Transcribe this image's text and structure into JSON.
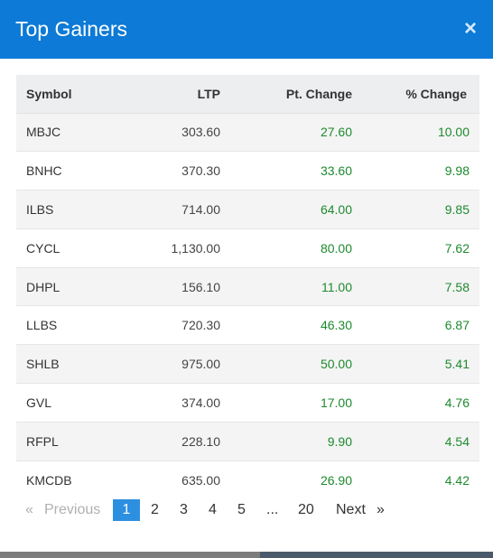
{
  "modal": {
    "title": "Top Gainers",
    "close_label": "×"
  },
  "table": {
    "headers": {
      "symbol": "Symbol",
      "ltp": "LTP",
      "pt_change": "Pt. Change",
      "pct_change": "% Change"
    },
    "rows": [
      {
        "symbol": "MBJC",
        "ltp": "303.60",
        "pt_change": "27.60",
        "pct_change": "10.00"
      },
      {
        "symbol": "BNHC",
        "ltp": "370.30",
        "pt_change": "33.60",
        "pct_change": "9.98"
      },
      {
        "symbol": "ILBS",
        "ltp": "714.00",
        "pt_change": "64.00",
        "pct_change": "9.85"
      },
      {
        "symbol": "CYCL",
        "ltp": "1,130.00",
        "pt_change": "80.00",
        "pct_change": "7.62"
      },
      {
        "symbol": "DHPL",
        "ltp": "156.10",
        "pt_change": "11.00",
        "pct_change": "7.58"
      },
      {
        "symbol": "LLBS",
        "ltp": "720.30",
        "pt_change": "46.30",
        "pct_change": "6.87"
      },
      {
        "symbol": "SHLB",
        "ltp": "975.00",
        "pt_change": "50.00",
        "pct_change": "5.41"
      },
      {
        "symbol": "GVL",
        "ltp": "374.00",
        "pt_change": "17.00",
        "pct_change": "4.76"
      },
      {
        "symbol": "RFPL",
        "ltp": "228.10",
        "pt_change": "9.90",
        "pct_change": "4.54"
      },
      {
        "symbol": "KMCDB",
        "ltp": "635.00",
        "pt_change": "26.90",
        "pct_change": "4.42"
      }
    ]
  },
  "pagination": {
    "prev_arrow": "«",
    "previous": "Previous",
    "pages": [
      "1",
      "2",
      "3",
      "4",
      "5"
    ],
    "ellipsis": "...",
    "last_page": "20",
    "next": "Next",
    "next_arrow": "»",
    "current": "1"
  },
  "colors": {
    "header_bg": "#0c7ad6",
    "positive": "#1d8a2e",
    "active_page": "#2d8fe0"
  }
}
